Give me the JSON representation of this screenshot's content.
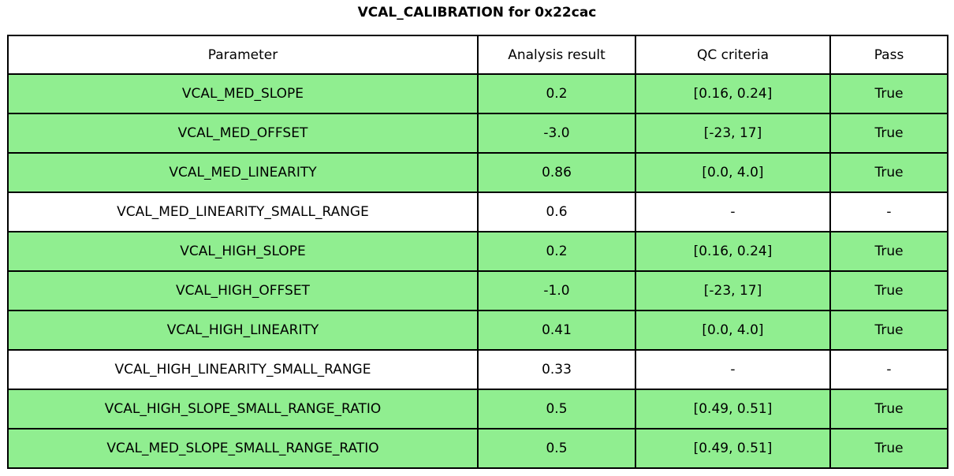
{
  "title": "VCAL_CALIBRATION for 0x22cac",
  "colors": {
    "pass_row_bg": "#90EE90",
    "neutral_row_bg": "#FFFFFF",
    "border": "#000000",
    "text": "#000000"
  },
  "chart_data": {
    "type": "table",
    "title": "VCAL_CALIBRATION for 0x22cac",
    "columns": [
      "Parameter",
      "Analysis result",
      "QC criteria",
      "Pass"
    ],
    "rows": [
      {
        "parameter": "VCAL_MED_SLOPE",
        "analysis_result": "0.2",
        "qc_criteria": "[0.16, 0.24]",
        "pass": "True",
        "highlighted": true
      },
      {
        "parameter": "VCAL_MED_OFFSET",
        "analysis_result": "-3.0",
        "qc_criteria": "[-23, 17]",
        "pass": "True",
        "highlighted": true
      },
      {
        "parameter": "VCAL_MED_LINEARITY",
        "analysis_result": "0.86",
        "qc_criteria": "[0.0, 4.0]",
        "pass": "True",
        "highlighted": true
      },
      {
        "parameter": "VCAL_MED_LINEARITY_SMALL_RANGE",
        "analysis_result": "0.6",
        "qc_criteria": "-",
        "pass": "-",
        "highlighted": false
      },
      {
        "parameter": "VCAL_HIGH_SLOPE",
        "analysis_result": "0.2",
        "qc_criteria": "[0.16, 0.24]",
        "pass": "True",
        "highlighted": true
      },
      {
        "parameter": "VCAL_HIGH_OFFSET",
        "analysis_result": "-1.0",
        "qc_criteria": "[-23, 17]",
        "pass": "True",
        "highlighted": true
      },
      {
        "parameter": "VCAL_HIGH_LINEARITY",
        "analysis_result": "0.41",
        "qc_criteria": "[0.0, 4.0]",
        "pass": "True",
        "highlighted": true
      },
      {
        "parameter": "VCAL_HIGH_LINEARITY_SMALL_RANGE",
        "analysis_result": "0.33",
        "qc_criteria": "-",
        "pass": "-",
        "highlighted": false
      },
      {
        "parameter": "VCAL_HIGH_SLOPE_SMALL_RANGE_RATIO",
        "analysis_result": "0.5",
        "qc_criteria": "[0.49, 0.51]",
        "pass": "True",
        "highlighted": true
      },
      {
        "parameter": "VCAL_MED_SLOPE_SMALL_RANGE_RATIO",
        "analysis_result": "0.5",
        "qc_criteria": "[0.49, 0.51]",
        "pass": "True",
        "highlighted": true
      }
    ]
  }
}
